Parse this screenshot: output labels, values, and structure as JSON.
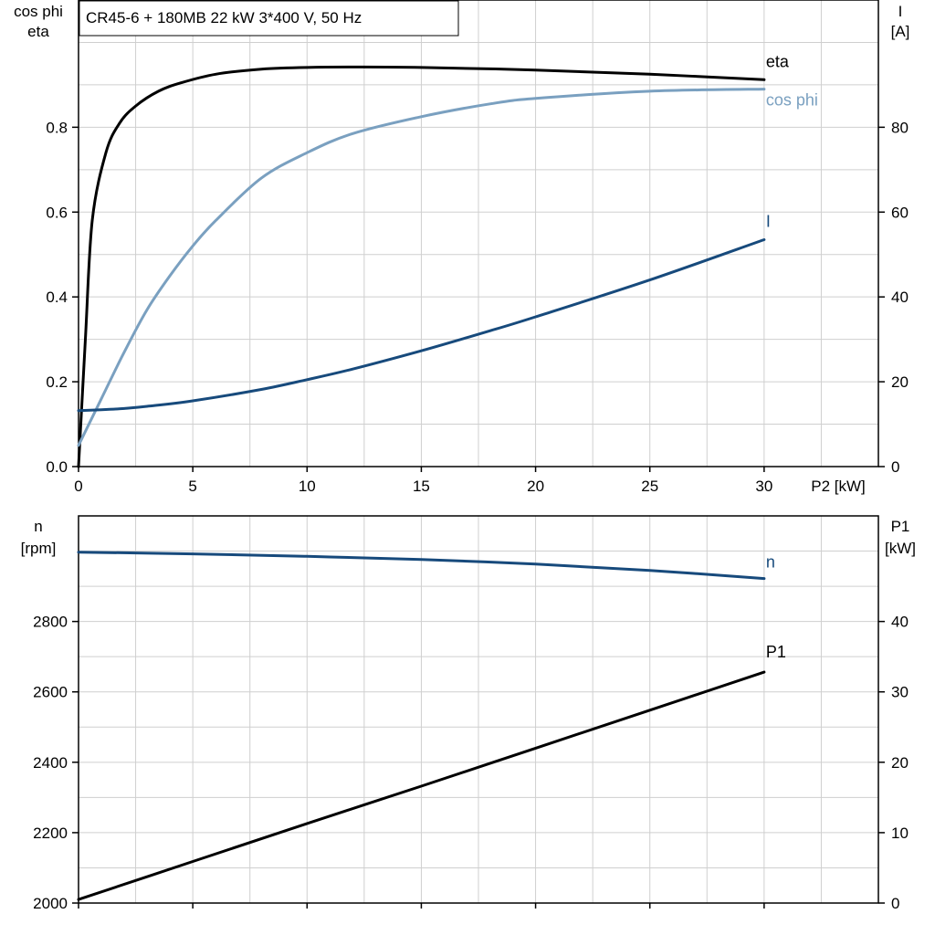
{
  "title": "CR45-6 + 180MB   22 kW   3*400 V, 50 Hz",
  "colors": {
    "eta": "#000000",
    "cos_phi": "#7aa0c0",
    "I": "#174a7c",
    "n": "#174a7c",
    "P1": "#000000",
    "grid": "#cfcfcf"
  },
  "chart_data": [
    {
      "type": "line",
      "grid": true,
      "x_label": "P2 [kW]",
      "x_ticks": [
        "0",
        "5",
        "10",
        "15",
        "20",
        "25",
        "30"
      ],
      "xlim": [
        0,
        35
      ],
      "left_axis_label": [
        "cos phi",
        "eta"
      ],
      "left_ticks": [
        "0.0",
        "0.2",
        "0.4",
        "0.6",
        "0.8"
      ],
      "left_ylim": [
        0,
        1.1
      ],
      "right_axis_label": [
        "I",
        "[A]"
      ],
      "right_ticks": [
        "0",
        "20",
        "40",
        "60",
        "80"
      ],
      "right_ylim": [
        0,
        110
      ],
      "series": [
        {
          "name": "eta",
          "axis": "left",
          "color_key": "eta",
          "x": [
            0,
            0.3,
            0.6,
            1.2,
            1.8,
            2.5,
            3.5,
            4.5,
            6,
            8,
            10,
            12,
            15,
            20,
            25,
            30
          ],
          "y": [
            0,
            0.3,
            0.58,
            0.74,
            0.81,
            0.85,
            0.885,
            0.905,
            0.925,
            0.937,
            0.941,
            0.942,
            0.941,
            0.935,
            0.925,
            0.912
          ]
        },
        {
          "name": "cos phi",
          "axis": "left",
          "color_key": "cos_phi",
          "x": [
            0,
            1,
            2,
            3,
            4,
            5,
            6,
            8,
            10,
            12,
            15,
            18,
            20,
            25,
            30
          ],
          "y": [
            0.05,
            0.16,
            0.27,
            0.37,
            0.45,
            0.52,
            0.58,
            0.68,
            0.74,
            0.785,
            0.825,
            0.855,
            0.868,
            0.885,
            0.89
          ]
        },
        {
          "name": "I",
          "axis": "right",
          "color_key": "I",
          "x": [
            0,
            1,
            2,
            3,
            5,
            8,
            10,
            12,
            15,
            18,
            20,
            25,
            30
          ],
          "y": [
            13.2,
            13.4,
            13.7,
            14.2,
            15.5,
            18.2,
            20.5,
            23.0,
            27.3,
            32.0,
            35.3,
            44.0,
            53.5
          ]
        }
      ]
    },
    {
      "type": "line",
      "grid": true,
      "x_label": "",
      "xlim": [
        0,
        35
      ],
      "left_axis_label": [
        "n",
        "[rpm]"
      ],
      "left_ticks": [
        "2000",
        "2200",
        "2400",
        "2600",
        "2800"
      ],
      "left_ylim": [
        2000,
        3100
      ],
      "right_axis_label": [
        "P1",
        "[kW]"
      ],
      "right_ticks": [
        "0",
        "10",
        "20",
        "30",
        "40"
      ],
      "right_ylim": [
        0,
        55
      ],
      "series": [
        {
          "name": "n",
          "axis": "left",
          "color_key": "n",
          "x": [
            0,
            5,
            10,
            15,
            20,
            25,
            30
          ],
          "y": [
            2997,
            2992,
            2985,
            2976,
            2963,
            2945,
            2922
          ]
        },
        {
          "name": "P1",
          "axis": "right",
          "color_key": "P1",
          "x": [
            0,
            5,
            10,
            15,
            20,
            25,
            30
          ],
          "y": [
            0.5,
            5.9,
            11.3,
            16.6,
            22.0,
            27.4,
            32.8
          ]
        }
      ]
    }
  ]
}
